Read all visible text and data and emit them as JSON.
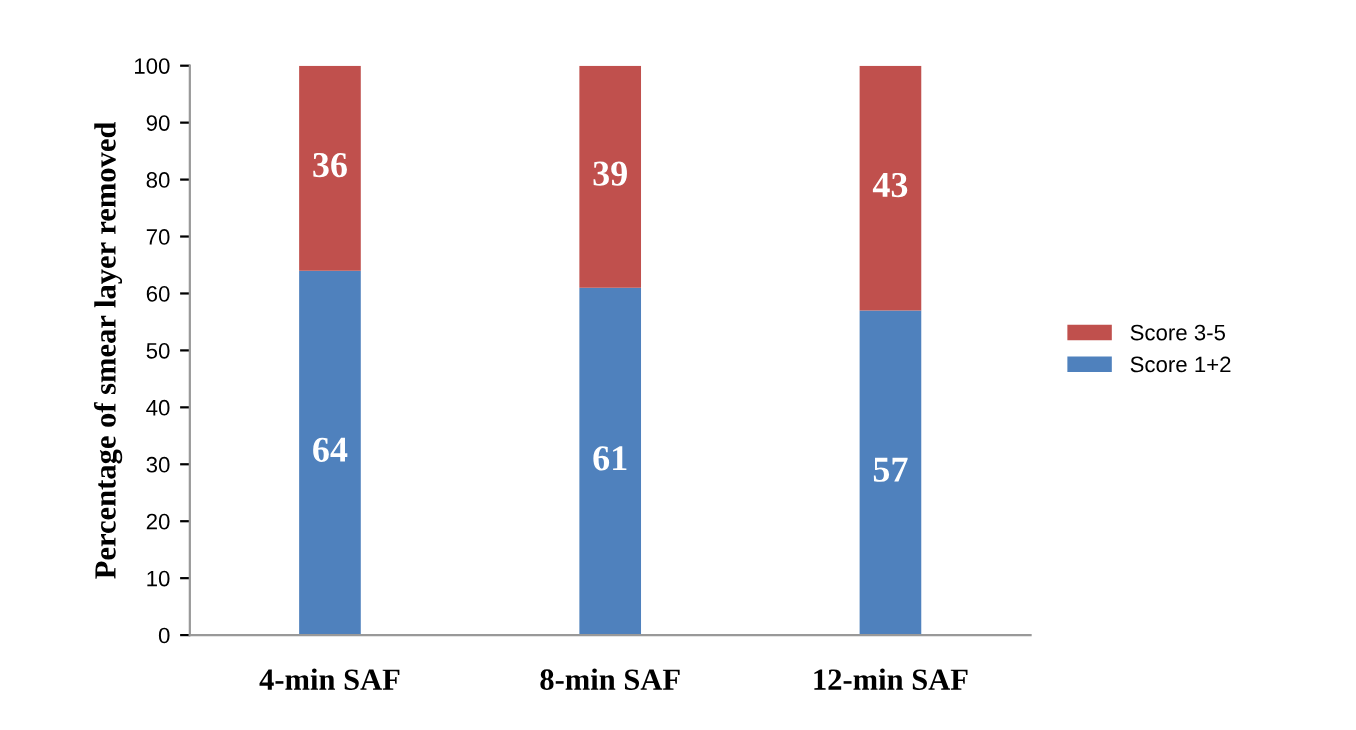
{
  "chart_data": {
    "type": "bar",
    "stacked": true,
    "ylabel": "Percentage of smear layer removed",
    "categories": [
      "4-min SAF",
      "8-min SAF",
      "12-min SAF"
    ],
    "series": [
      {
        "name": "Score 1+2",
        "color": "#4f81bd",
        "values": [
          64,
          61,
          57
        ]
      },
      {
        "name": "Score 3-5",
        "color": "#c0504d",
        "values": [
          36,
          39,
          43
        ]
      }
    ],
    "ylim": [
      0,
      100
    ],
    "yticks": [
      0,
      10,
      20,
      30,
      40,
      50,
      60,
      70,
      80,
      90,
      100
    ],
    "grid": false,
    "legend": "right",
    "data_labels": true
  }
}
